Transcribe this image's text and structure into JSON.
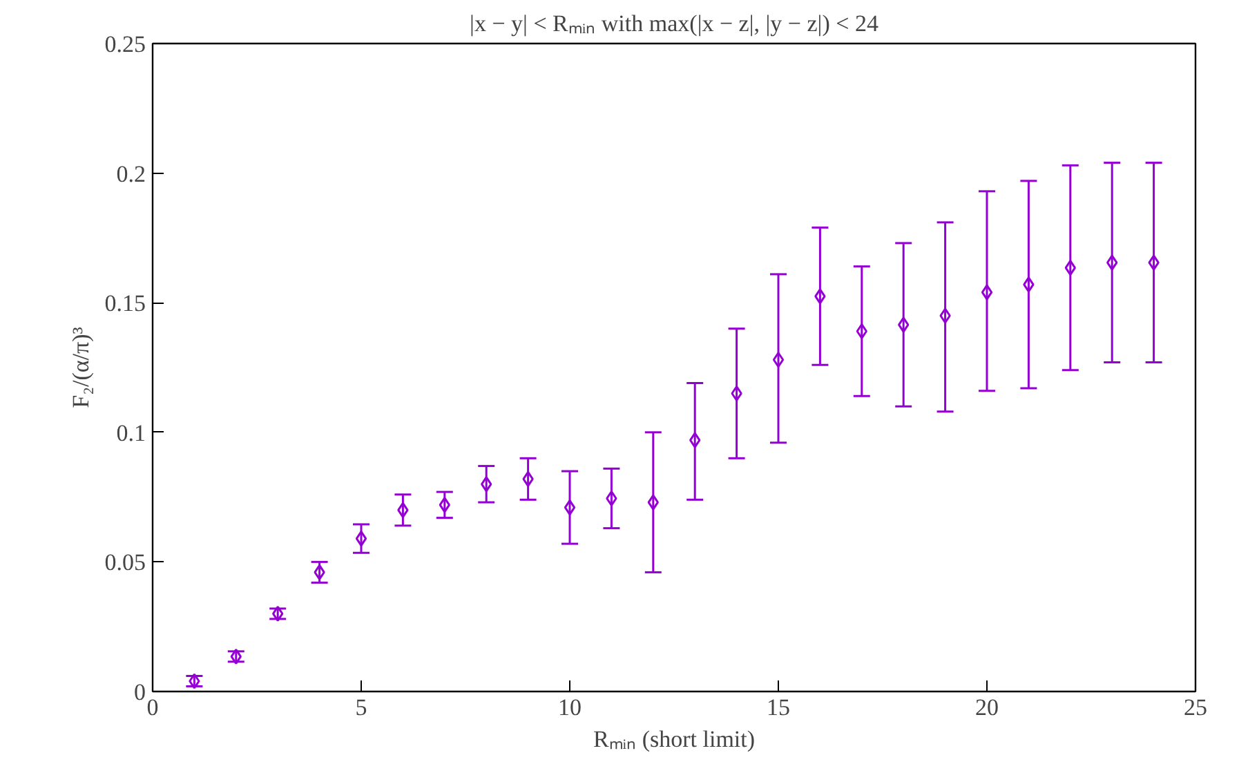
{
  "chart_data": {
    "type": "scatter",
    "title": "|x − y| < Rₘᵢₙ with max(|x − z|, |y − z|) < 24",
    "xlabel": "Rₘᵢₙ (short limit)",
    "ylabel": "F₂/(α/π)³",
    "x": [
      1,
      2,
      3,
      4,
      5,
      6,
      7,
      8,
      9,
      10,
      11,
      12,
      13,
      14,
      15,
      16,
      17,
      18,
      19,
      20,
      21,
      22,
      23,
      24
    ],
    "values": [
      0.004,
      0.0135,
      0.03,
      0.046,
      0.059,
      0.07,
      0.072,
      0.08,
      0.082,
      0.071,
      0.0745,
      0.073,
      0.097,
      0.115,
      0.128,
      0.1525,
      0.139,
      0.1415,
      0.145,
      0.154,
      0.157,
      0.1635,
      0.1655,
      0.1655
    ],
    "errors": [
      0.002,
      0.002,
      0.002,
      0.004,
      0.0055,
      0.006,
      0.005,
      0.007,
      0.008,
      [
        0.057,
        0.085
      ],
      [
        0.063,
        0.086
      ],
      [
        0.046,
        0.1
      ],
      [
        0.074,
        0.119
      ],
      [
        0.09,
        0.14
      ],
      [
        0.096,
        0.161
      ],
      [
        0.126,
        0.179
      ],
      [
        0.114,
        0.164
      ],
      [
        0.11,
        0.173
      ],
      [
        0.108,
        0.181
      ],
      [
        0.116,
        0.193
      ],
      [
        0.117,
        0.197
      ],
      [
        0.124,
        0.203
      ],
      [
        0.127,
        0.204
      ],
      [
        0.127,
        0.204
      ]
    ],
    "color": "#9400d3",
    "marker": "diamond",
    "xlim": [
      0,
      25
    ],
    "xticks": [
      0,
      5,
      10,
      15,
      20,
      25
    ],
    "ylim": [
      0,
      0.25
    ],
    "yticks": [
      0,
      0.05,
      0.1,
      0.15,
      0.2,
      0.25
    ],
    "grid": false
  }
}
